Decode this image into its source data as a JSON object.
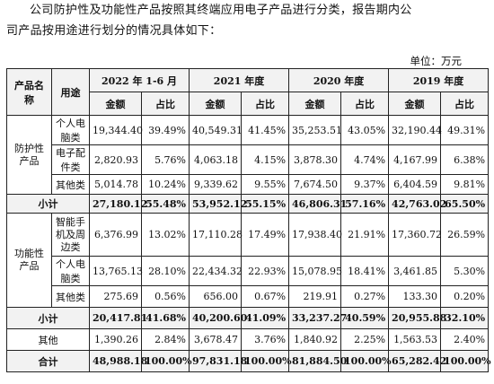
{
  "intro": {
    "line1": "公司防护性及功能性产品按照其终端应用电子产品进行分类，报告期内公",
    "line2": "司产品按用途进行划分的情况具体如下："
  },
  "unit_label": "单位：万元",
  "table": {
    "col_category": "产品名称",
    "col_use": "用途",
    "periods": [
      "2022 年 1-6 月",
      "2021 年度",
      "2020 年度",
      "2019 年度"
    ],
    "amount_label": "金额",
    "ratio_label": "占比",
    "groups": [
      {
        "category": "防护性产品",
        "rows": [
          {
            "use": "个人电脑类",
            "values": [
              "19,344.40",
              "39.49%",
              "40,549.31",
              "41.45%",
              "35,253.51",
              "43.05%",
              "32,190.44",
              "49.31%"
            ]
          },
          {
            "use": "电子配件类",
            "values": [
              "2,820.93",
              "5.76%",
              "4,063.18",
              "4.15%",
              "3,878.30",
              "4.74%",
              "4,167.99",
              "6.38%"
            ]
          },
          {
            "use": "其他类",
            "values": [
              "5,014.78",
              "10.24%",
              "9,339.62",
              "9.55%",
              "7,674.50",
              "9.37%",
              "6,404.59",
              "9.81%"
            ]
          }
        ],
        "subtotal": {
          "label": "小计",
          "values": [
            "27,180.12",
            "55.48%",
            "53,952.12",
            "55.15%",
            "46,806.31",
            "57.16%",
            "42,763.02",
            "65.50%"
          ]
        }
      },
      {
        "category": "功能性产品",
        "rows": [
          {
            "use": "智能手机及周边类",
            "values": [
              "6,376.99",
              "13.02%",
              "17,110.28",
              "17.49%",
              "17,938.40",
              "21.91%",
              "17,360.72",
              "26.59%"
            ]
          },
          {
            "use": "个人电脑类",
            "values": [
              "13,765.13",
              "28.10%",
              "22,434.32",
              "22.93%",
              "15,078.95",
              "18.41%",
              "3,461.85",
              "5.30%"
            ]
          },
          {
            "use": "其他类",
            "values": [
              "275.69",
              "0.56%",
              "656.00",
              "0.67%",
              "219.91",
              "0.27%",
              "133.30",
              "0.20%"
            ]
          }
        ],
        "subtotal": {
          "label": "小计",
          "values": [
            "20,417.81",
            "41.68%",
            "40,200.60",
            "41.09%",
            "33,237.27",
            "40.59%",
            "20,955.88",
            "32.10%"
          ]
        }
      }
    ],
    "other": {
      "label": "其他",
      "values": [
        "1,390.26",
        "2.84%",
        "3,678.47",
        "3.76%",
        "1,840.92",
        "2.25%",
        "1,563.53",
        "2.40%"
      ]
    },
    "total": {
      "label": "合计",
      "values": [
        "48,988.18",
        "100.00%",
        "97,831.18",
        "100.00%",
        "81,884.50",
        "100.00%",
        "65,282.42",
        "100.00%"
      ]
    }
  }
}
